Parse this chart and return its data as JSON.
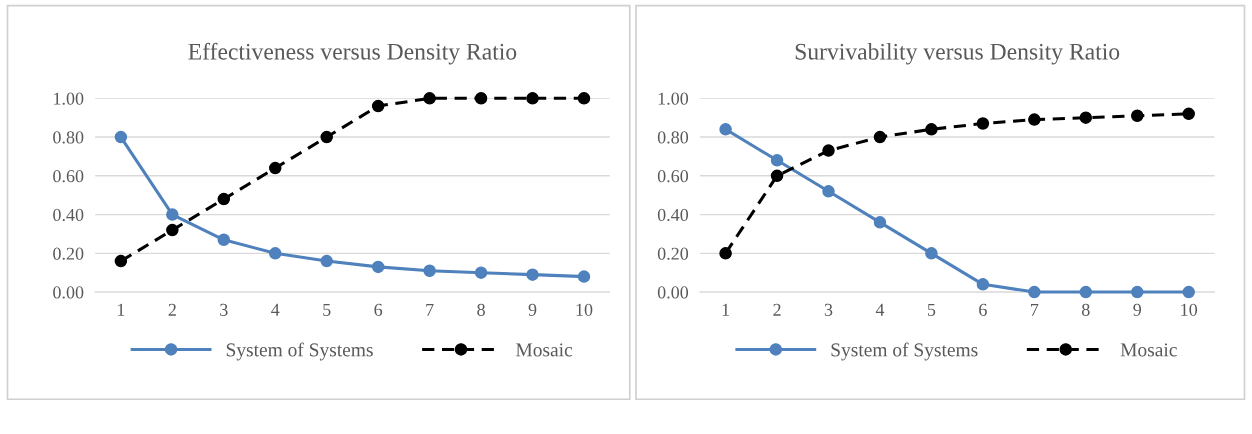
{
  "chart_data": [
    {
      "type": "line",
      "title": "Effectiveness versus Density Ratio",
      "categories": [
        "1",
        "2",
        "3",
        "4",
        "5",
        "6",
        "7",
        "8",
        "9",
        "10"
      ],
      "series": [
        {
          "name": "System of Systems",
          "color": "#4f81bd",
          "values": [
            0.8,
            0.4,
            0.27,
            0.2,
            0.16,
            0.13,
            0.11,
            0.1,
            0.09,
            0.08
          ],
          "marker": "circle",
          "line_style": "solid"
        },
        {
          "name": "Mosaic",
          "color": "#000000",
          "values": [
            0.16,
            0.32,
            0.48,
            0.64,
            0.8,
            0.96,
            1.0,
            1.0,
            1.0,
            1.0
          ],
          "marker": "circle",
          "line_style": "dashed"
        }
      ],
      "ylim": [
        0,
        1
      ],
      "yticks": [
        {
          "value": 0,
          "label": "0.00"
        },
        {
          "value": 0.2,
          "label": "0.20"
        },
        {
          "value": 0.4,
          "label": "0.40"
        },
        {
          "value": 0.6,
          "label": "0.60"
        },
        {
          "value": 0.8,
          "label": "0.80"
        },
        {
          "value": 1.0,
          "label": "1.00"
        }
      ],
      "grid": "y",
      "legend": "bottom"
    },
    {
      "type": "line",
      "title": "Survivability versus Density Ratio",
      "categories": [
        "1",
        "2",
        "3",
        "4",
        "5",
        "6",
        "7",
        "8",
        "9",
        "10"
      ],
      "series": [
        {
          "name": "System of Systems",
          "color": "#4f81bd",
          "values": [
            0.84,
            0.68,
            0.52,
            0.36,
            0.2,
            0.04,
            0.0,
            0.0,
            0.0,
            0.0
          ],
          "marker": "circle",
          "line_style": "solid"
        },
        {
          "name": "Mosaic",
          "color": "#000000",
          "values": [
            0.2,
            0.6,
            0.73,
            0.8,
            0.84,
            0.87,
            0.89,
            0.9,
            0.91,
            0.92
          ],
          "marker": "circle",
          "line_style": "dashed"
        }
      ],
      "ylim": [
        0,
        1
      ],
      "yticks": [
        {
          "value": 0,
          "label": "0.00"
        },
        {
          "value": 0.2,
          "label": "0.20"
        },
        {
          "value": 0.4,
          "label": "0.40"
        },
        {
          "value": 0.6,
          "label": "0.60"
        },
        {
          "value": 0.8,
          "label": "0.80"
        },
        {
          "value": 1.0,
          "label": "1.00"
        }
      ],
      "grid": "y",
      "legend": "bottom"
    }
  ]
}
